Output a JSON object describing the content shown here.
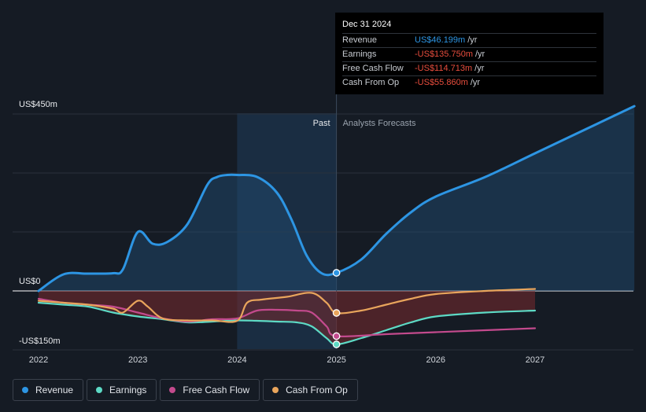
{
  "chart_data": {
    "type": "line",
    "y_tick_labels": [
      {
        "value": 450,
        "label": "US$450m"
      },
      {
        "value": 0,
        "label": "US$0"
      },
      {
        "value": -150,
        "label": "-US$150m"
      }
    ],
    "ylim": [
      -150,
      450
    ],
    "xlim": [
      2022,
      2030.0
    ],
    "x_ticks": [
      2022,
      2023,
      2024,
      2025,
      2026,
      2027
    ],
    "past_label": "Past",
    "forecast_label": "Analysts Forecasts",
    "past_highlight_range": [
      2024.0,
      2025.0
    ],
    "divider_x": 2025.0,
    "series": [
      {
        "name": "Revenue",
        "color": "#2d95e3",
        "area": true,
        "x": [
          2022.0,
          2022.25,
          2022.5,
          2022.75,
          2022.85,
          2023.0,
          2023.15,
          2023.3,
          2023.5,
          2023.7,
          2023.8,
          2023.9,
          2024.0,
          2024.2,
          2024.4,
          2024.55,
          2024.7,
          2024.85,
          2025.0,
          2025.25,
          2025.5,
          2025.75,
          2026.0,
          2026.5,
          2027.0,
          2027.5,
          2028.0
        ],
        "y": [
          0,
          42,
          44,
          45,
          55,
          150,
          120,
          125,
          170,
          270,
          290,
          295,
          295,
          290,
          250,
          180,
          90,
          45,
          46,
          80,
          145,
          200,
          240,
          290,
          350,
          410,
          470
        ]
      },
      {
        "name": "Earnings",
        "color": "#5ddac5",
        "x": [
          2022.0,
          2022.25,
          2022.5,
          2022.75,
          2023.0,
          2023.25,
          2023.5,
          2023.75,
          2024.0,
          2024.2,
          2024.4,
          2024.6,
          2024.75,
          2024.9,
          2025.0,
          2025.25,
          2025.5,
          2025.75,
          2026.0,
          2026.5,
          2027.0
        ],
        "y": [
          -30,
          -35,
          -40,
          -55,
          -65,
          -72,
          -80,
          -78,
          -75,
          -76,
          -78,
          -80,
          -90,
          -120,
          -136,
          -120,
          -100,
          -80,
          -65,
          -55,
          -50
        ]
      },
      {
        "name": "Free Cash Flow",
        "color": "#c34a8d",
        "x": [
          2022.0,
          2022.25,
          2022.5,
          2022.75,
          2023.0,
          2023.25,
          2023.5,
          2023.75,
          2024.0,
          2024.2,
          2024.4,
          2024.6,
          2024.75,
          2024.9,
          2025.0,
          2025.5,
          2026.0,
          2026.5,
          2027.0
        ],
        "y": [
          -20,
          -30,
          -35,
          -40,
          -55,
          -70,
          -78,
          -72,
          -70,
          -50,
          -48,
          -50,
          -55,
          -90,
          -115,
          -110,
          -105,
          -100,
          -95
        ]
      },
      {
        "name": "Cash From Op",
        "color": "#e9a55c",
        "x": [
          2022.0,
          2022.25,
          2022.5,
          2022.75,
          2022.85,
          2023.0,
          2023.1,
          2023.25,
          2023.5,
          2023.75,
          2024.0,
          2024.1,
          2024.25,
          2024.5,
          2024.75,
          2024.9,
          2025.0,
          2025.25,
          2025.5,
          2025.75,
          2026.0,
          2026.5,
          2027.0
        ],
        "y": [
          -25,
          -30,
          -35,
          -45,
          -55,
          -25,
          -40,
          -70,
          -75,
          -75,
          -76,
          -30,
          -22,
          -15,
          -5,
          -30,
          -56,
          -50,
          -35,
          -20,
          -8,
          0,
          5
        ]
      }
    ]
  },
  "tooltip": {
    "date": "Dec 31 2024",
    "rows": [
      {
        "label": "Revenue",
        "value": "US$46.199m",
        "unit": "/yr",
        "color": "#2d95e3"
      },
      {
        "label": "Earnings",
        "value": "-US$135.750m",
        "unit": "/yr",
        "color": "#e84d3d"
      },
      {
        "label": "Free Cash Flow",
        "value": "-US$114.713m",
        "unit": "/yr",
        "color": "#e84d3d"
      },
      {
        "label": "Cash From Op",
        "value": "-US$55.860m",
        "unit": "/yr",
        "color": "#e84d3d"
      }
    ]
  },
  "legend": [
    {
      "label": "Revenue",
      "color": "#2d95e3"
    },
    {
      "label": "Earnings",
      "color": "#5ddac5"
    },
    {
      "label": "Free Cash Flow",
      "color": "#c34a8d"
    },
    {
      "label": "Cash From Op",
      "color": "#e9a55c"
    }
  ]
}
